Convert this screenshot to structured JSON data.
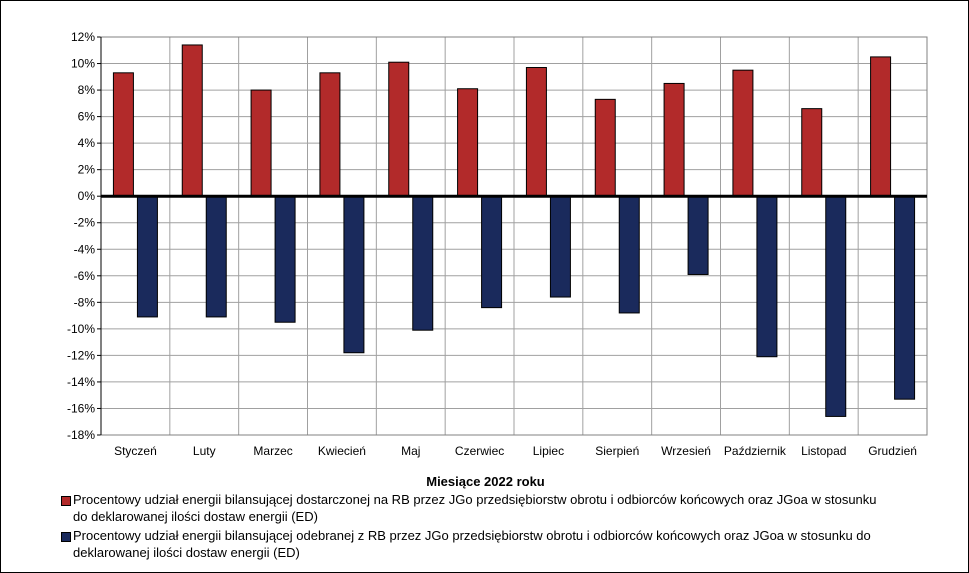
{
  "chart_data": {
    "type": "bar",
    "xlabel": "Miesiące 2022  roku",
    "ylim": [
      -18,
      12
    ],
    "y_ticks": [
      12,
      10,
      8,
      6,
      4,
      2,
      0,
      -2,
      -4,
      -6,
      -8,
      -10,
      -12,
      -14,
      -16,
      -18
    ],
    "y_tick_format": "percent",
    "grid": true,
    "legend_position": "bottom",
    "categories": [
      "Styczeń",
      "Luty",
      "Marzec",
      "Kwiecień",
      "Maj",
      "Czerwiec",
      "Lipiec",
      "Sierpień",
      "Wrzesień",
      "Październik",
      "Listopad",
      "Grudzień"
    ],
    "series": [
      {
        "name": "Procentowy udział energii bilansującej dostarczonej na RB przez JGo przedsiębiorstw obrotu i odbiorców końcowych oraz JGoa w stosunku do deklarowanej ilości dostaw energii (ED)",
        "name_lines": [
          "Procentowy udział energii bilansującej dostarczonej na RB przez JGo przedsiębiorstw obrotu i odbiorców końcowych oraz JGoa w stosunku",
          "do deklarowanej ilości dostaw energii (ED)"
        ],
        "color": "#b22a2a",
        "values": [
          9.3,
          11.4,
          8.0,
          9.3,
          10.1,
          8.1,
          9.7,
          7.3,
          8.5,
          9.5,
          6.6,
          10.5
        ]
      },
      {
        "name": "Procentowy udział energii bilansującej odebranej z RB przez JGo przedsiębiorstw obrotu i odbiorców końcowych oraz JGoa w stosunku do deklarowanej ilości dostaw energii (ED)",
        "name_lines": [
          "Procentowy udział energii bilansującej odebranej z RB przez JGo przedsiębiorstw obrotu i odbiorców końcowych oraz JGoa w stosunku do",
          "deklarowanej ilości dostaw energii (ED)"
        ],
        "color": "#1a2a5c",
        "values": [
          -9.1,
          -9.1,
          -9.5,
          -11.8,
          -10.1,
          -8.4,
          -7.6,
          -8.8,
          -5.9,
          -12.1,
          -16.6,
          -15.3
        ]
      }
    ]
  }
}
